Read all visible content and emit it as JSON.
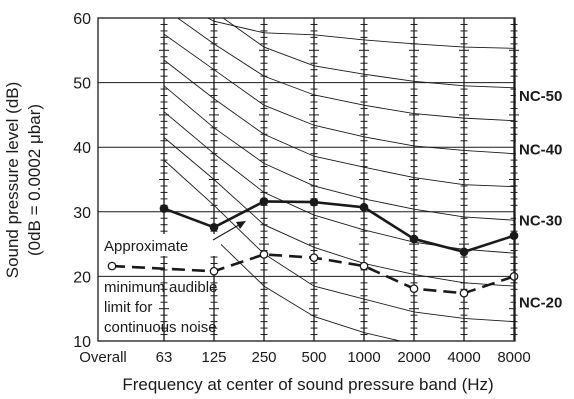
{
  "chart_data": {
    "type": "line",
    "xlabel": "Frequency at center of sound pressure band (Hz)",
    "ylabel_line1": "Sound pressure level (dB)",
    "ylabel_line2": "(0dB = 0.0002 μbar)",
    "categories": [
      "Overall",
      "63",
      "125",
      "250",
      "500",
      "1000",
      "2000",
      "4000",
      "8000"
    ],
    "ylim": [
      10,
      60
    ],
    "yticks": [
      10,
      20,
      30,
      40,
      50,
      60
    ],
    "grid": true,
    "series": [
      {
        "name": "",
        "style": "solid-filled",
        "x": [
          "63",
          "125",
          "250",
          "500",
          "1000",
          "2000",
          "4000",
          "8000"
        ],
        "values": [
          30.5,
          27.6,
          31.6,
          31.5,
          30.7,
          25.8,
          23.8,
          26.3
        ]
      },
      {
        "name": "",
        "style": "dashed-open",
        "x": [
          "Overall",
          "125",
          "250",
          "500",
          "1000",
          "2000",
          "4000",
          "8000"
        ],
        "values": [
          21.6,
          20.8,
          23.4,
          22.9,
          21.6,
          18.1,
          17.4,
          20.0
        ]
      }
    ],
    "nc_labels": [
      {
        "label": "NC-50",
        "y": 47.5
      },
      {
        "label": "NC-40",
        "y": 39.2
      },
      {
        "label": "NC-30",
        "y": 28.2
      },
      {
        "label": "NC-20",
        "y": 15.5
      }
    ],
    "nc_curves": [
      {
        "x": [
          "63",
          "125",
          "250",
          "500",
          "1000",
          "2000",
          "4000",
          "8000"
        ],
        "values": [
          63.5,
          59.5,
          57.7,
          57.4,
          56.6,
          56.0,
          55.5,
          55.3
        ]
      },
      {
        "x": [
          "63",
          "125",
          "250",
          "500",
          "1000",
          "2000",
          "4000",
          "8000"
        ],
        "values": [
          65.5,
          61.0,
          55.5,
          52.6,
          51.3,
          50.2,
          49.5,
          49.2
        ]
      },
      {
        "x": [
          "63",
          "125",
          "250",
          "500",
          "1000",
          "2000",
          "4000",
          "8000"
        ],
        "values": [
          61.5,
          56.0,
          51.0,
          48.1,
          46.5,
          45.2,
          44.5,
          44.1
        ]
      },
      {
        "x": [
          "63",
          "125",
          "250",
          "500",
          "1000",
          "2000",
          "4000",
          "8000"
        ],
        "values": [
          57.5,
          52.0,
          46.5,
          43.4,
          41.6,
          40.2,
          39.5,
          39.0
        ]
      },
      {
        "x": [
          "63",
          "125",
          "250",
          "500",
          "1000",
          "2000",
          "4000",
          "8000"
        ],
        "values": [
          53.5,
          47.5,
          42.0,
          38.6,
          36.9,
          35.3,
          34.2,
          33.9
        ]
      },
      {
        "x": [
          "63",
          "125",
          "250",
          "500",
          "1000",
          "2000",
          "4000",
          "8000"
        ],
        "values": [
          49.5,
          43.0,
          37.5,
          34.0,
          32.0,
          30.4,
          29.2,
          28.7
        ]
      },
      {
        "x": [
          "63",
          "125",
          "250",
          "500",
          "1000",
          "2000",
          "4000",
          "8000"
        ],
        "values": [
          45.5,
          39.0,
          33.0,
          29.5,
          27.2,
          25.3,
          24.2,
          23.6
        ]
      },
      {
        "x": [
          "63",
          "125",
          "250",
          "500",
          "1000",
          "2000",
          "4000",
          "8000"
        ],
        "values": [
          41.5,
          35.0,
          28.0,
          24.5,
          22.0,
          20.3,
          19.0,
          18.5
        ]
      },
      {
        "x": [
          "63",
          "125",
          "250",
          "500",
          "1000",
          "2000",
          "4000",
          "8000"
        ],
        "values": [
          38.0,
          31.0,
          23.5,
          18.5,
          16.5,
          14.5,
          13.5,
          13.0
        ]
      },
      {
        "x": [
          "125",
          "250",
          "500",
          "1000",
          "2000",
          "4000",
          "8000"
        ],
        "values": [
          26.0,
          18.5,
          13.8,
          11.3,
          9.5,
          8.5,
          8.0
        ]
      }
    ],
    "annotation_lines": [
      "Approximate",
      "minimum audible",
      "limit for",
      "continuous noise"
    ]
  },
  "colors": {
    "line": "#1a1a1a",
    "grid": "#1a1a1a",
    "background": "#ffffff"
  }
}
